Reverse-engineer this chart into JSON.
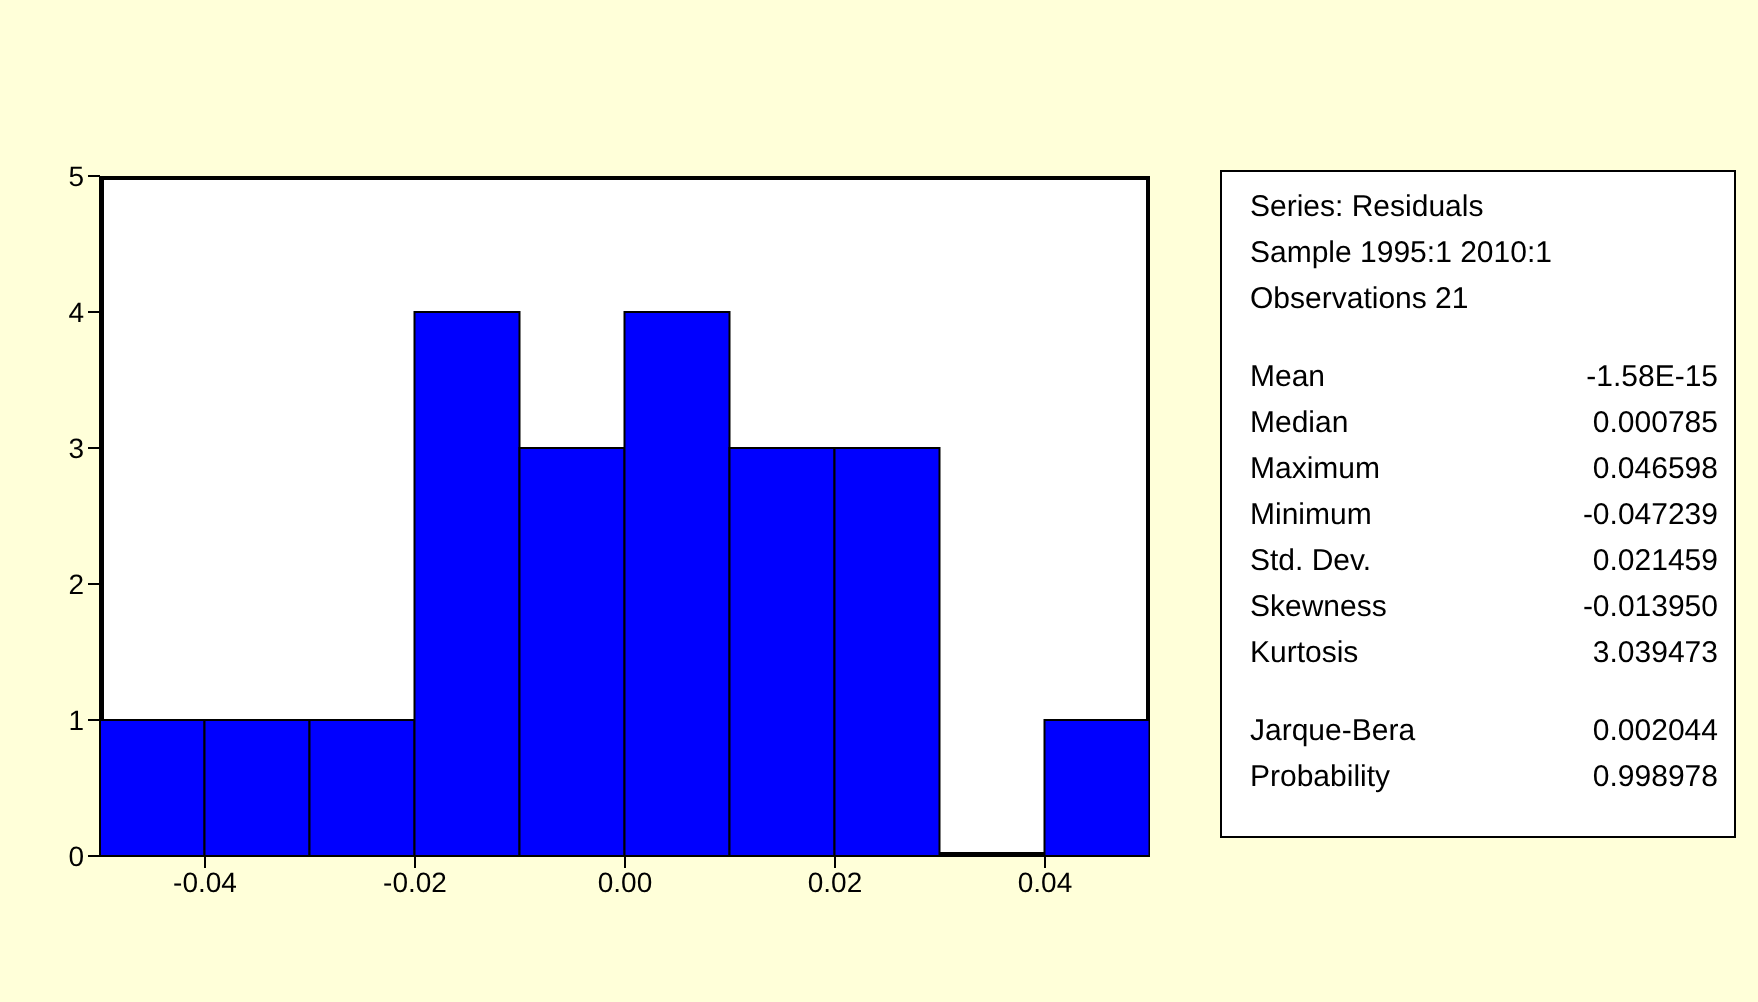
{
  "chart_data": [
    {
      "type": "histogram",
      "bins": [
        -0.05,
        -0.04,
        -0.03,
        -0.02,
        -0.01,
        0.0,
        0.01,
        0.02,
        0.03,
        0.04,
        0.05
      ],
      "values": [
        1,
        1,
        1,
        4,
        3,
        4,
        3,
        3,
        0,
        1
      ],
      "color": "#0000ff",
      "xlim": [
        -0.05,
        0.05
      ],
      "xticks": [
        {
          "value": -0.04,
          "label": "-0.04"
        },
        {
          "value": -0.02,
          "label": "-0.02"
        },
        {
          "value": 0,
          "label": "0.00"
        },
        {
          "value": 0.02,
          "label": "0.02"
        },
        {
          "value": 0.04,
          "label": "0.04"
        }
      ],
      "ylim": [
        0,
        5
      ],
      "yticks": [
        0,
        1,
        2,
        3,
        4,
        5
      ]
    },
    {
      "type": "other",
      "annotations": [
        "Series: Residuals",
        "Sample 1995:1 2010:1",
        "Observations 21",
        "Mean",
        "-1.58E-15",
        "Median",
        "0.000785",
        "Maximum",
        "0.046598",
        "Minimum",
        "-0.047239",
        "Std. Dev.",
        "0.021459",
        "Skewness",
        "-0.013950",
        "Kurtosis",
        "3.039473",
        "Jarque-Bera",
        "0.002044",
        "Probability",
        "0.998978"
      ]
    }
  ]
}
